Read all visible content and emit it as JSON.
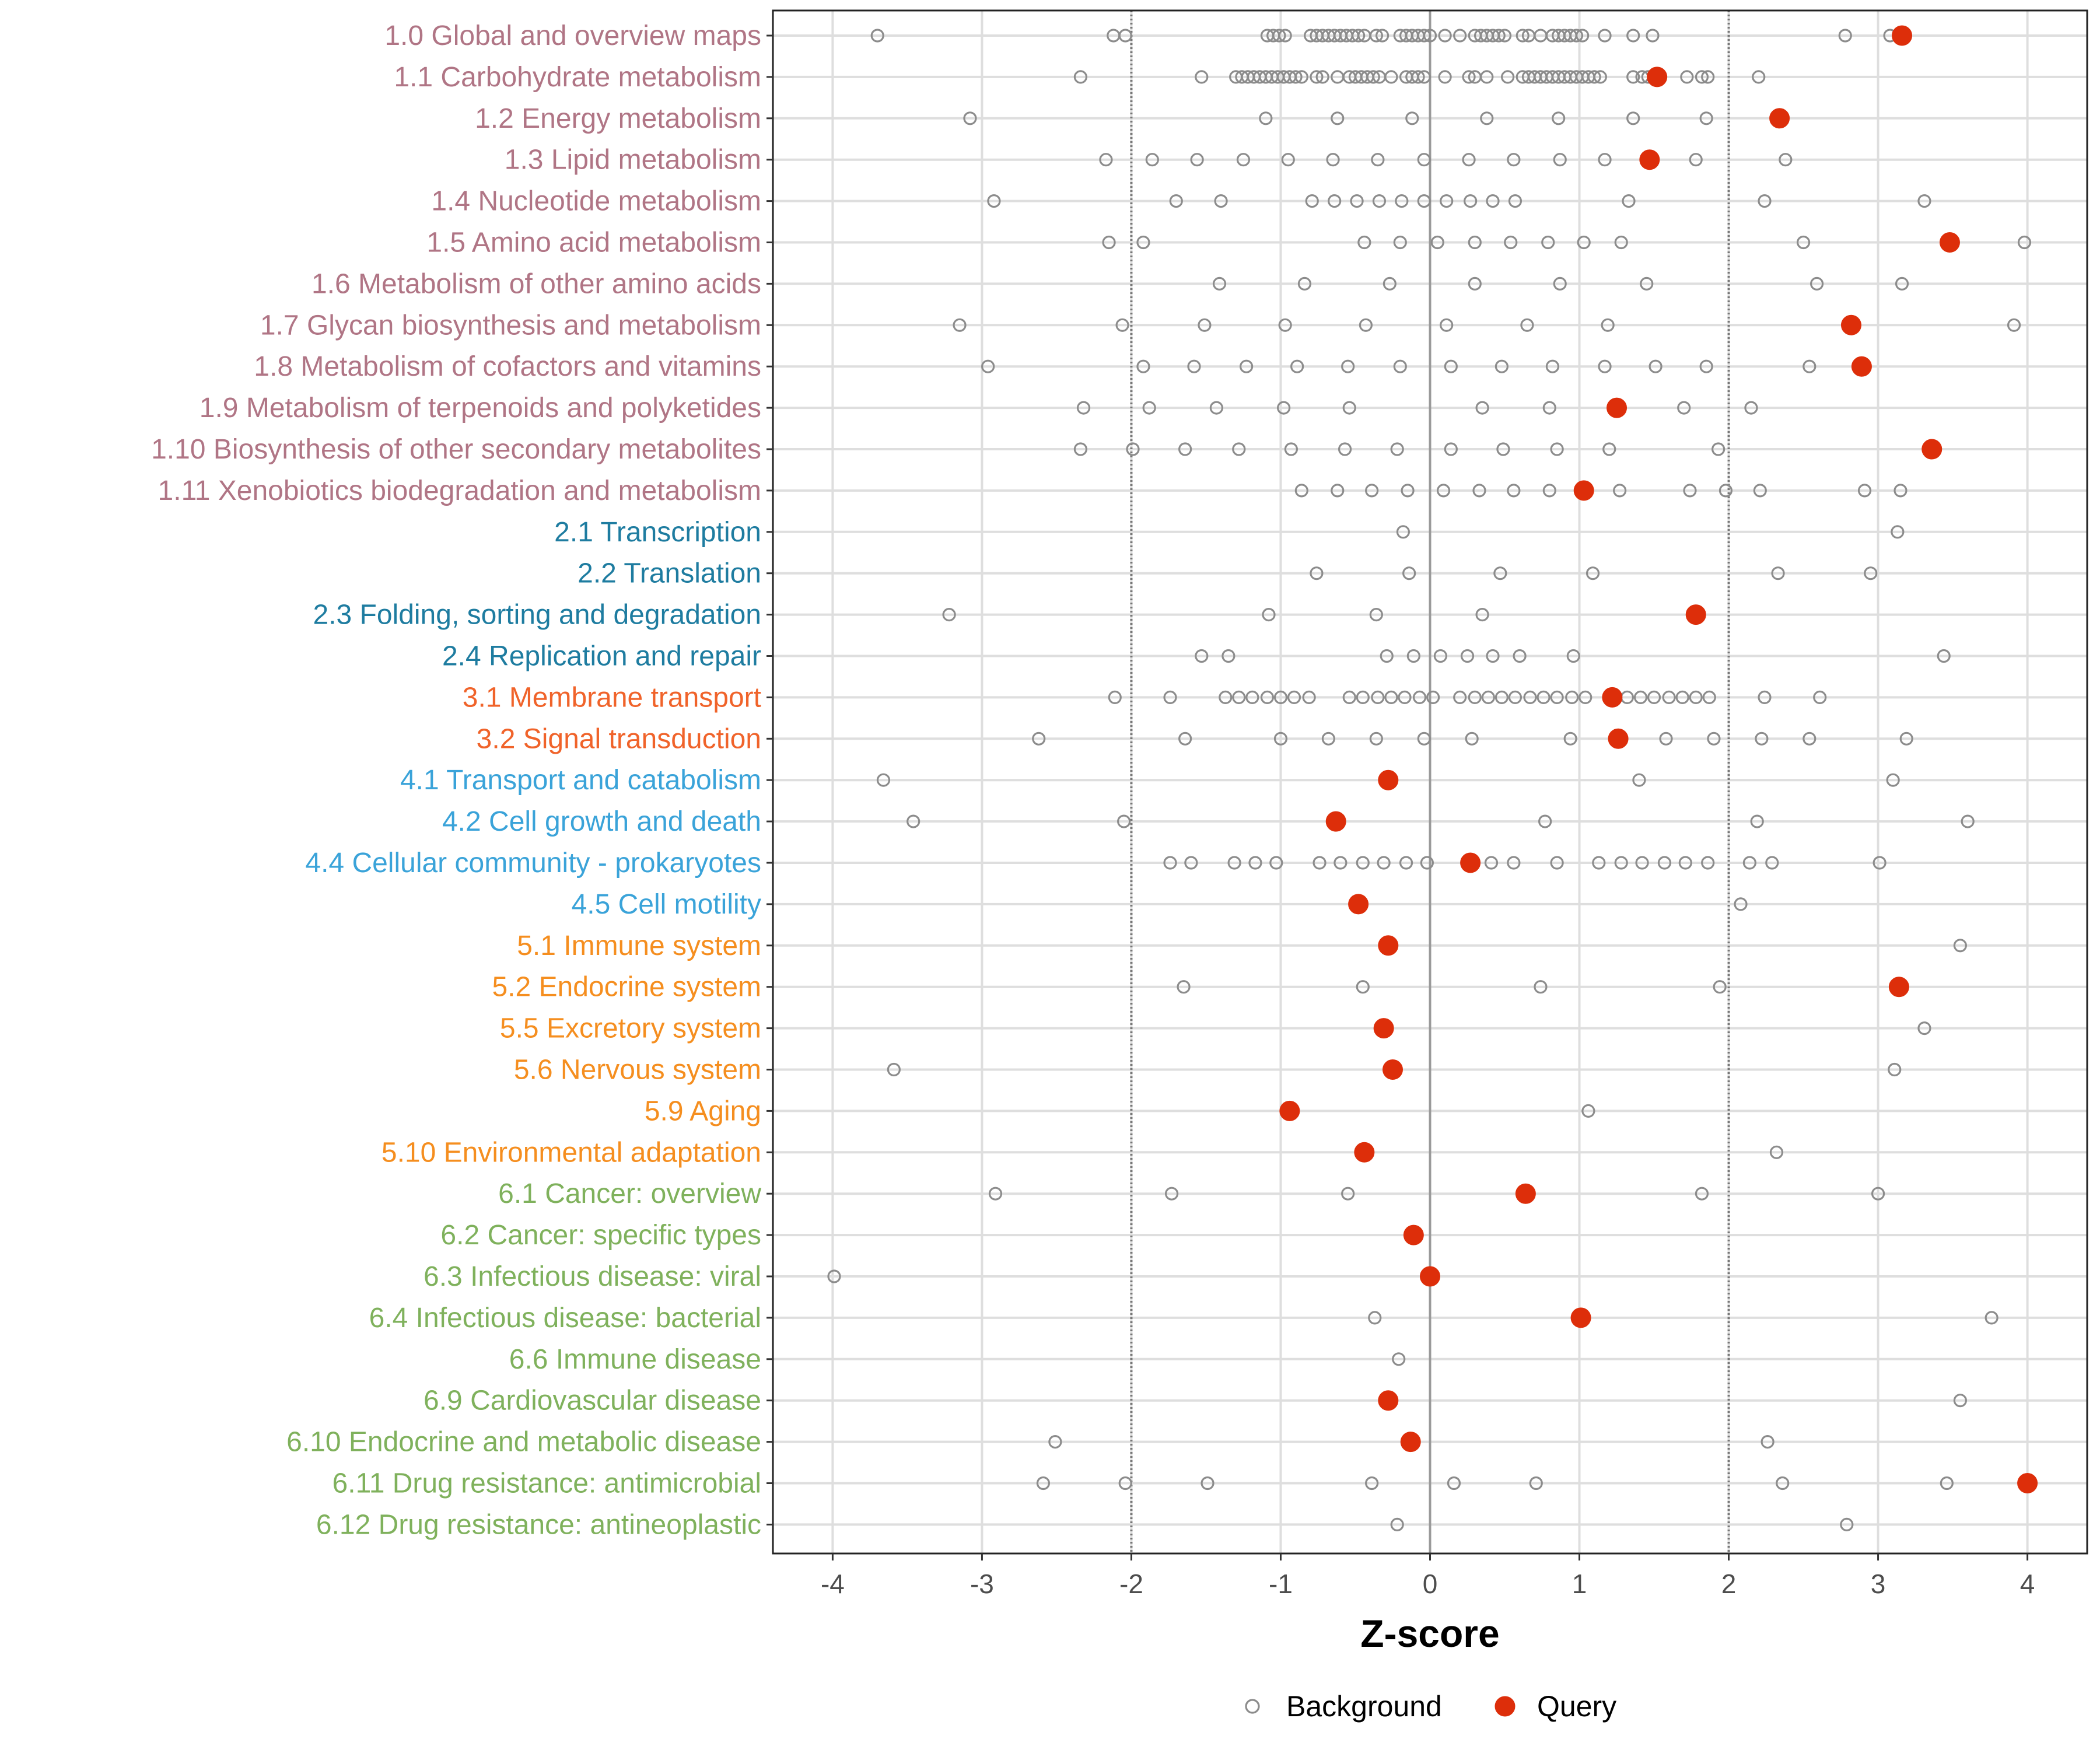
{
  "chart_data": {
    "type": "scatter",
    "title": "",
    "xlabel": "Z-score",
    "ylabel": "",
    "xlim": [
      -4.4,
      4.4
    ],
    "x_ticks": [
      -4,
      -3,
      -2,
      -1,
      0,
      1,
      2,
      3,
      4
    ],
    "x_tick_labels": [
      "-4",
      "-3",
      "-2",
      "-1",
      "0",
      "1",
      "2",
      "3",
      "4"
    ],
    "reference_lines": [
      {
        "x": -2,
        "style": "dotted"
      },
      {
        "x": 0,
        "style": "solid"
      },
      {
        "x": 2,
        "style": "dotted"
      }
    ],
    "grid": true,
    "legend": {
      "placement": "bottom",
      "entries": [
        {
          "label": "Background",
          "marker": "open-circle",
          "color": "#8c8c8c"
        },
        {
          "label": "Query",
          "marker": "filled-circle",
          "color": "#dd2e0a"
        }
      ]
    },
    "category_colors": {
      "1": "#b07585",
      "2": "#1e7ca0",
      "3": "#f0632a",
      "4": "#3aa3d9",
      "5": "#f58e1f",
      "6": "#7fb15c"
    },
    "rows": [
      {
        "label": "1.0 Global and overview maps",
        "group": "1",
        "query": 3.16,
        "background": [
          -3.7,
          -2.12,
          -2.04,
          -1.09,
          -1.05,
          -1.01,
          -0.97,
          -0.8,
          -0.76,
          -0.72,
          -0.68,
          -0.64,
          -0.6,
          -0.56,
          -0.52,
          -0.48,
          -0.44,
          -0.36,
          -0.32,
          -0.2,
          -0.16,
          -0.12,
          -0.08,
          -0.04,
          0.0,
          0.1,
          0.2,
          0.3,
          0.34,
          0.38,
          0.42,
          0.46,
          0.5,
          0.62,
          0.66,
          0.74,
          0.82,
          0.86,
          0.9,
          0.94,
          0.98,
          1.02,
          1.17,
          1.36,
          1.49,
          2.78,
          3.08
        ]
      },
      {
        "label": "1.1 Carbohydrate metabolism",
        "group": "1",
        "query": 1.52,
        "background": [
          -2.34,
          -1.53,
          -1.3,
          -1.26,
          -1.22,
          -1.18,
          -1.14,
          -1.1,
          -1.06,
          -1.02,
          -0.98,
          -0.94,
          -0.9,
          -0.86,
          -0.76,
          -0.72,
          -0.62,
          -0.54,
          -0.5,
          -0.46,
          -0.42,
          -0.38,
          -0.34,
          -0.26,
          -0.16,
          -0.12,
          -0.08,
          -0.04,
          0.1,
          0.26,
          0.3,
          0.38,
          0.52,
          0.62,
          0.66,
          0.7,
          0.74,
          0.78,
          0.82,
          0.86,
          0.9,
          0.94,
          0.98,
          1.02,
          1.06,
          1.1,
          1.14,
          1.36,
          1.42,
          1.46,
          1.72,
          1.82,
          1.86,
          2.2
        ]
      },
      {
        "label": "1.2 Energy metabolism",
        "group": "1",
        "query": 2.34,
        "background": [
          -3.08,
          -1.1,
          -0.62,
          -0.12,
          0.38,
          0.86,
          1.36,
          1.85
        ]
      },
      {
        "label": "1.3 Lipid metabolism",
        "group": "1",
        "query": 1.47,
        "background": [
          -2.17,
          -1.86,
          -1.56,
          -1.25,
          -0.95,
          -0.65,
          -0.35,
          -0.04,
          0.26,
          0.56,
          0.87,
          1.17,
          1.78,
          2.38
        ]
      },
      {
        "label": "1.4 Nucleotide metabolism",
        "group": "1",
        "query": null,
        "background": [
          -2.92,
          -1.7,
          -1.4,
          -0.79,
          -0.64,
          -0.49,
          -0.34,
          -0.19,
          -0.04,
          0.11,
          0.27,
          0.42,
          0.57,
          1.33,
          2.24,
          3.31
        ]
      },
      {
        "label": "1.5 Amino acid metabolism",
        "group": "1",
        "query": 3.48,
        "background": [
          -2.15,
          -1.92,
          -0.44,
          -0.2,
          0.05,
          0.3,
          0.54,
          0.79,
          1.03,
          1.28,
          2.5,
          3.98
        ]
      },
      {
        "label": "1.6 Metabolism of other amino acids",
        "group": "1",
        "query": null,
        "background": [
          -1.41,
          -0.84,
          -0.27,
          0.3,
          0.87,
          1.45,
          2.59,
          3.16
        ]
      },
      {
        "label": "1.7 Glycan biosynthesis and metabolism",
        "group": "1",
        "query": 2.82,
        "background": [
          -3.15,
          -2.06,
          -1.51,
          -0.97,
          -0.43,
          0.11,
          0.65,
          1.19,
          3.91
        ]
      },
      {
        "label": "1.8 Metabolism of cofactors and vitamins",
        "group": "1",
        "query": 2.89,
        "background": [
          -2.96,
          -1.92,
          -1.58,
          -1.23,
          -0.89,
          -0.55,
          -0.2,
          0.14,
          0.48,
          0.82,
          1.17,
          1.51,
          1.85,
          2.54
        ]
      },
      {
        "label": "1.9 Metabolism of terpenoids and polyketides",
        "group": "1",
        "query": 1.25,
        "background": [
          -2.32,
          -1.88,
          -1.43,
          -0.98,
          -0.54,
          0.35,
          0.8,
          1.7,
          2.15
        ]
      },
      {
        "label": "1.10 Biosynthesis of other secondary metabolites",
        "group": "1",
        "query": 3.36,
        "background": [
          -2.34,
          -1.99,
          -1.64,
          -1.28,
          -0.93,
          -0.57,
          -0.22,
          0.14,
          0.49,
          0.85,
          1.2,
          1.93
        ]
      },
      {
        "label": "1.11 Xenobiotics biodegradation and metabolism",
        "group": "1",
        "query": 1.03,
        "background": [
          -0.86,
          -0.62,
          -0.39,
          -0.15,
          0.09,
          0.33,
          0.56,
          0.8,
          1.27,
          1.74,
          1.98,
          2.21,
          2.91,
          3.15
        ]
      },
      {
        "label": "2.1 Transcription",
        "group": "2",
        "query": null,
        "background": [
          -0.18,
          3.13
        ]
      },
      {
        "label": "2.2 Translation",
        "group": "2",
        "query": null,
        "background": [
          -0.76,
          -0.14,
          0.47,
          1.09,
          2.33,
          2.95
        ]
      },
      {
        "label": "2.3 Folding, sorting and degradation",
        "group": "2",
        "query": 1.78,
        "background": [
          -3.22,
          -1.08,
          -0.36,
          0.35
        ]
      },
      {
        "label": "2.4 Replication and repair",
        "group": "2",
        "query": null,
        "background": [
          -1.53,
          -1.35,
          -0.29,
          -0.11,
          0.07,
          0.25,
          0.42,
          0.6,
          0.96,
          3.44
        ]
      },
      {
        "label": "3.1 Membrane transport",
        "group": "3",
        "query": 1.22,
        "background": [
          -2.11,
          -1.74,
          -1.37,
          -1.28,
          -1.19,
          -1.09,
          -1.0,
          -0.91,
          -0.81,
          -0.54,
          -0.45,
          -0.35,
          -0.26,
          -0.17,
          -0.07,
          0.02,
          0.2,
          0.3,
          0.39,
          0.48,
          0.57,
          0.67,
          0.76,
          0.85,
          0.95,
          1.04,
          1.32,
          1.41,
          1.5,
          1.6,
          1.69,
          1.78,
          1.87,
          2.24,
          2.61
        ]
      },
      {
        "label": "3.2 Signal transduction",
        "group": "3",
        "query": 1.26,
        "background": [
          -2.62,
          -1.64,
          -1.0,
          -0.68,
          -0.36,
          -0.04,
          0.28,
          0.94,
          1.58,
          1.9,
          2.22,
          2.54,
          3.19
        ]
      },
      {
        "label": "4.1 Transport and catabolism",
        "group": "4",
        "query": -0.28,
        "background": [
          -3.66,
          1.4,
          3.1
        ]
      },
      {
        "label": "4.2 Cell growth and death",
        "group": "4",
        "query": -0.63,
        "background": [
          -3.46,
          -2.05,
          0.77,
          2.19,
          3.6
        ]
      },
      {
        "label": "4.4 Cellular community - prokaryotes",
        "group": "4",
        "query": 0.27,
        "background": [
          -1.74,
          -1.6,
          -1.31,
          -1.17,
          -1.03,
          -0.74,
          -0.6,
          -0.45,
          -0.31,
          -0.16,
          -0.02,
          0.41,
          0.56,
          0.85,
          1.13,
          1.28,
          1.42,
          1.57,
          1.71,
          1.86,
          2.14,
          2.29,
          3.01
        ]
      },
      {
        "label": "4.5 Cell motility",
        "group": "4",
        "query": -0.48,
        "background": [
          2.08
        ]
      },
      {
        "label": "5.1 Immune system",
        "group": "5",
        "query": -0.28,
        "background": [
          3.55
        ]
      },
      {
        "label": "5.2 Endocrine system",
        "group": "5",
        "query": 3.14,
        "background": [
          -1.65,
          -0.45,
          0.74,
          1.94
        ]
      },
      {
        "label": "5.5 Excretory system",
        "group": "5",
        "query": -0.31,
        "background": [
          3.31
        ]
      },
      {
        "label": "5.6 Nervous system",
        "group": "5",
        "query": -0.25,
        "background": [
          -3.59,
          3.11
        ]
      },
      {
        "label": "5.9 Aging",
        "group": "5",
        "query": -0.94,
        "background": [
          1.06
        ]
      },
      {
        "label": "5.10 Environmental adaptation",
        "group": "5",
        "query": -0.44,
        "background": [
          2.32
        ]
      },
      {
        "label": "6.1 Cancer: overview",
        "group": "6",
        "query": 0.64,
        "background": [
          -2.91,
          -1.73,
          -0.55,
          1.82,
          3.0
        ]
      },
      {
        "label": "6.2 Cancer: specific types",
        "group": "6",
        "query": -0.11,
        "background": []
      },
      {
        "label": "6.3 Infectious disease: viral",
        "group": "6",
        "query": 0.0,
        "background": [
          -3.99
        ]
      },
      {
        "label": "6.4 Infectious disease: bacterial",
        "group": "6",
        "query": 1.01,
        "background": [
          -0.37,
          3.76
        ]
      },
      {
        "label": "6.6 Immune disease",
        "group": "6",
        "query": null,
        "background": [
          -0.21
        ]
      },
      {
        "label": "6.9 Cardiovascular disease",
        "group": "6",
        "query": -0.28,
        "background": [
          3.55
        ]
      },
      {
        "label": "6.10 Endocrine and metabolic disease",
        "group": "6",
        "query": -0.13,
        "background": [
          -2.51,
          2.26
        ]
      },
      {
        "label": "6.11 Drug resistance: antimicrobial",
        "group": "6",
        "query": 4.0,
        "background": [
          -2.59,
          -2.04,
          -1.49,
          -0.39,
          0.16,
          0.71,
          2.36,
          3.46
        ]
      },
      {
        "label": "6.12 Drug resistance: antineoplastic",
        "group": "6",
        "query": null,
        "background": [
          -0.22,
          2.79
        ]
      }
    ]
  }
}
